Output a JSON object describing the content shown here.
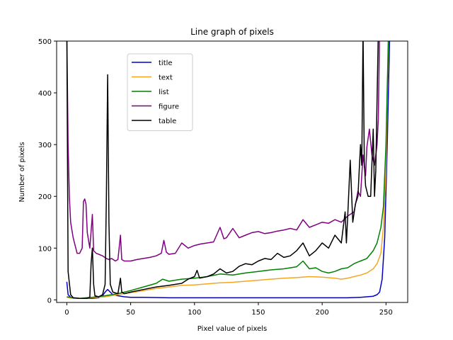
{
  "chart_data": {
    "type": "line",
    "title": "Line graph of pixels",
    "xlabel": "Pixel value of pixels",
    "ylabel": "Number of pixels",
    "xlim": [
      -8,
      267
    ],
    "ylim": [
      -5,
      500
    ],
    "xticks": [
      0,
      50,
      100,
      150,
      200,
      250
    ],
    "yticks": [
      0,
      100,
      200,
      300,
      400,
      500
    ],
    "grid": false,
    "legend_position": "upper-left-inner",
    "series": [
      {
        "name": "title",
        "color": "#0000c8",
        "points": [
          [
            0,
            35
          ],
          [
            1,
            10
          ],
          [
            3,
            5
          ],
          [
            5,
            3
          ],
          [
            10,
            3
          ],
          [
            15,
            3
          ],
          [
            20,
            3
          ],
          [
            25,
            4
          ],
          [
            28,
            8
          ],
          [
            30,
            15
          ],
          [
            32,
            20
          ],
          [
            34,
            15
          ],
          [
            36,
            10
          ],
          [
            40,
            8
          ],
          [
            45,
            6
          ],
          [
            50,
            5
          ],
          [
            60,
            5
          ],
          [
            80,
            4
          ],
          [
            100,
            4
          ],
          [
            120,
            4
          ],
          [
            150,
            4
          ],
          [
            180,
            4
          ],
          [
            200,
            4
          ],
          [
            220,
            4
          ],
          [
            230,
            5
          ],
          [
            240,
            7
          ],
          [
            243,
            10
          ],
          [
            245,
            15
          ],
          [
            247,
            40
          ],
          [
            249,
            120
          ],
          [
            251,
            300
          ],
          [
            253,
            520
          ]
        ]
      },
      {
        "name": "text",
        "color": "#f5a623",
        "points": [
          [
            0,
            5
          ],
          [
            5,
            3
          ],
          [
            10,
            3
          ],
          [
            20,
            4
          ],
          [
            30,
            6
          ],
          [
            40,
            10
          ],
          [
            50,
            14
          ],
          [
            60,
            18
          ],
          [
            70,
            22
          ],
          [
            80,
            25
          ],
          [
            90,
            28
          ],
          [
            100,
            29
          ],
          [
            110,
            31
          ],
          [
            120,
            33
          ],
          [
            130,
            34
          ],
          [
            140,
            36
          ],
          [
            150,
            38
          ],
          [
            160,
            40
          ],
          [
            170,
            42
          ],
          [
            180,
            43
          ],
          [
            190,
            45
          ],
          [
            200,
            44
          ],
          [
            210,
            42
          ],
          [
            215,
            40
          ],
          [
            220,
            42
          ],
          [
            225,
            45
          ],
          [
            230,
            48
          ],
          [
            235,
            52
          ],
          [
            240,
            60
          ],
          [
            243,
            70
          ],
          [
            246,
            90
          ],
          [
            248,
            140
          ],
          [
            250,
            250
          ],
          [
            252,
            520
          ]
        ]
      },
      {
        "name": "list",
        "color": "#008000",
        "points": [
          [
            0,
            6
          ],
          [
            5,
            4
          ],
          [
            10,
            3
          ],
          [
            20,
            5
          ],
          [
            30,
            8
          ],
          [
            40,
            12
          ],
          [
            50,
            18
          ],
          [
            60,
            25
          ],
          [
            70,
            32
          ],
          [
            75,
            40
          ],
          [
            80,
            36
          ],
          [
            90,
            40
          ],
          [
            100,
            42
          ],
          [
            110,
            45
          ],
          [
            120,
            50
          ],
          [
            130,
            48
          ],
          [
            140,
            52
          ],
          [
            150,
            55
          ],
          [
            160,
            58
          ],
          [
            170,
            60
          ],
          [
            180,
            64
          ],
          [
            185,
            75
          ],
          [
            190,
            60
          ],
          [
            195,
            62
          ],
          [
            200,
            55
          ],
          [
            205,
            52
          ],
          [
            210,
            55
          ],
          [
            215,
            60
          ],
          [
            220,
            62
          ],
          [
            225,
            70
          ],
          [
            230,
            75
          ],
          [
            235,
            80
          ],
          [
            240,
            95
          ],
          [
            243,
            110
          ],
          [
            246,
            140
          ],
          [
            248,
            180
          ],
          [
            250,
            300
          ],
          [
            252,
            520
          ]
        ]
      },
      {
        "name": "figure",
        "color": "#800080",
        "points": [
          [
            0,
            520
          ],
          [
            1,
            300
          ],
          [
            2,
            200
          ],
          [
            3,
            150
          ],
          [
            5,
            120
          ],
          [
            7,
            100
          ],
          [
            8,
            90
          ],
          [
            10,
            90
          ],
          [
            12,
            100
          ],
          [
            13,
            190
          ],
          [
            14,
            195
          ],
          [
            15,
            185
          ],
          [
            16,
            130
          ],
          [
            18,
            100
          ],
          [
            20,
            165
          ],
          [
            21,
            95
          ],
          [
            23,
            90
          ],
          [
            25,
            88
          ],
          [
            28,
            85
          ],
          [
            31,
            80
          ],
          [
            33,
            78
          ],
          [
            35,
            80
          ],
          [
            38,
            75
          ],
          [
            40,
            78
          ],
          [
            42,
            125
          ],
          [
            43,
            78
          ],
          [
            45,
            75
          ],
          [
            50,
            75
          ],
          [
            55,
            78
          ],
          [
            60,
            80
          ],
          [
            65,
            82
          ],
          [
            70,
            85
          ],
          [
            74,
            90
          ],
          [
            76,
            115
          ],
          [
            78,
            92
          ],
          [
            80,
            88
          ],
          [
            85,
            90
          ],
          [
            90,
            110
          ],
          [
            95,
            100
          ],
          [
            100,
            105
          ],
          [
            105,
            108
          ],
          [
            110,
            110
          ],
          [
            115,
            112
          ],
          [
            120,
            140
          ],
          [
            123,
            118
          ],
          [
            125,
            120
          ],
          [
            130,
            138
          ],
          [
            135,
            120
          ],
          [
            140,
            125
          ],
          [
            145,
            130
          ],
          [
            150,
            132
          ],
          [
            155,
            128
          ],
          [
            160,
            130
          ],
          [
            165,
            133
          ],
          [
            170,
            135
          ],
          [
            175,
            138
          ],
          [
            180,
            135
          ],
          [
            185,
            155
          ],
          [
            190,
            140
          ],
          [
            195,
            145
          ],
          [
            200,
            150
          ],
          [
            205,
            148
          ],
          [
            210,
            155
          ],
          [
            215,
            150
          ],
          [
            220,
            162
          ],
          [
            225,
            170
          ],
          [
            228,
            210
          ],
          [
            230,
            200
          ],
          [
            232,
            280
          ],
          [
            234,
            240
          ],
          [
            235,
            295
          ],
          [
            237,
            330
          ],
          [
            239,
            280
          ],
          [
            241,
            260
          ],
          [
            243,
            300
          ],
          [
            244,
            350
          ],
          [
            245,
            520
          ]
        ]
      },
      {
        "name": "table",
        "color": "#000000",
        "points": [
          [
            0,
            520
          ],
          [
            1,
            55
          ],
          [
            3,
            10
          ],
          [
            5,
            4
          ],
          [
            10,
            3
          ],
          [
            15,
            3
          ],
          [
            18,
            5
          ],
          [
            19,
            70
          ],
          [
            20,
            100
          ],
          [
            21,
            30
          ],
          [
            22,
            8
          ],
          [
            25,
            6
          ],
          [
            28,
            10
          ],
          [
            30,
            30
          ],
          [
            31,
            200
          ],
          [
            32,
            435
          ],
          [
            33,
            150
          ],
          [
            34,
            30
          ],
          [
            36,
            15
          ],
          [
            40,
            12
          ],
          [
            42,
            42
          ],
          [
            43,
            15
          ],
          [
            45,
            12
          ],
          [
            50,
            15
          ],
          [
            60,
            20
          ],
          [
            70,
            25
          ],
          [
            80,
            28
          ],
          [
            90,
            32
          ],
          [
            95,
            40
          ],
          [
            100,
            45
          ],
          [
            102,
            57
          ],
          [
            104,
            42
          ],
          [
            110,
            45
          ],
          [
            115,
            50
          ],
          [
            120,
            60
          ],
          [
            125,
            52
          ],
          [
            130,
            55
          ],
          [
            135,
            65
          ],
          [
            140,
            70
          ],
          [
            145,
            68
          ],
          [
            150,
            75
          ],
          [
            155,
            80
          ],
          [
            160,
            78
          ],
          [
            165,
            90
          ],
          [
            170,
            82
          ],
          [
            175,
            85
          ],
          [
            180,
            95
          ],
          [
            185,
            110
          ],
          [
            190,
            85
          ],
          [
            195,
            95
          ],
          [
            200,
            110
          ],
          [
            205,
            100
          ],
          [
            210,
            125
          ],
          [
            215,
            110
          ],
          [
            218,
            170
          ],
          [
            219,
            110
          ],
          [
            220,
            160
          ],
          [
            222,
            270
          ],
          [
            224,
            150
          ],
          [
            226,
            185
          ],
          [
            228,
            200
          ],
          [
            230,
            300
          ],
          [
            231,
            260
          ],
          [
            232,
            520
          ],
          [
            233,
            265
          ],
          [
            234,
            220
          ],
          [
            236,
            200
          ],
          [
            238,
            200
          ],
          [
            240,
            330
          ],
          [
            241,
            200
          ],
          [
            242,
            250
          ],
          [
            244,
            520
          ]
        ]
      }
    ]
  }
}
